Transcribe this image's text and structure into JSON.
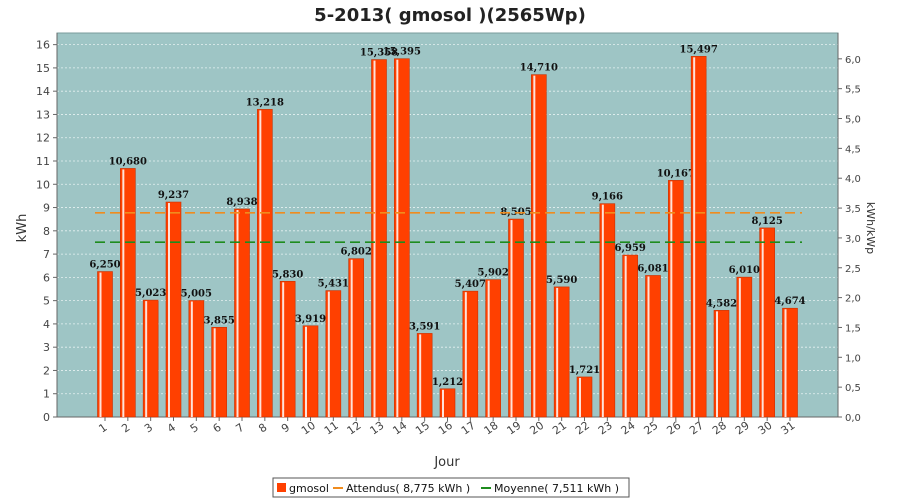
{
  "chart_data": {
    "type": "bar",
    "title": "5-2013( gmosol )(2565Wp)",
    "xlabel": "Jour",
    "ylabel": "kWh",
    "ylabel_right": "kWh/kWp",
    "ylim": [
      0,
      16.5
    ],
    "ylim_right": [
      0,
      6.4327
    ],
    "y_ticks": [
      "0",
      "1",
      "2",
      "3",
      "4",
      "5",
      "6",
      "7",
      "8",
      "9",
      "10",
      "11",
      "12",
      "13",
      "14",
      "15",
      "16"
    ],
    "y_ticks_right": [
      "0,0",
      "0,5",
      "1,0",
      "1,5",
      "2,0",
      "2,5",
      "3,0",
      "3,5",
      "4,0",
      "4,5",
      "5,0",
      "5,5",
      "6,0"
    ],
    "categories": [
      "1",
      "2",
      "3",
      "4",
      "5",
      "6",
      "7",
      "8",
      "9",
      "10",
      "11",
      "12",
      "13",
      "14",
      "15",
      "16",
      "17",
      "18",
      "19",
      "20",
      "21",
      "22",
      "23",
      "24",
      "25",
      "26",
      "27",
      "28",
      "29",
      "30",
      "31"
    ],
    "series": [
      {
        "name": "gmosol",
        "values": [
          6.25,
          10.68,
          5.023,
          9.237,
          5.005,
          3.855,
          8.938,
          13.218,
          5.83,
          3.919,
          5.431,
          6.802,
          15.358,
          15.395,
          3.591,
          1.212,
          5.407,
          5.902,
          8.505,
          14.71,
          5.59,
          1.721,
          9.166,
          6.959,
          6.081,
          10.167,
          15.497,
          4.582,
          6.01,
          8.125,
          4.674
        ],
        "labels": [
          "6,250",
          "10,680",
          "5,023",
          "9,237",
          "5,005",
          "3,855",
          "8,938",
          "13,218",
          "5,830",
          "3,919",
          "5,431",
          "6,802",
          "15,358",
          "15,395",
          "3,591",
          "1,212",
          "5,407",
          "5,902",
          "8,505",
          "14,710",
          "5,590",
          "1,721",
          "9,166",
          "6,959",
          "6,081",
          "10,167",
          "15,497",
          "4,582",
          "6,010",
          "8,125",
          "4,674"
        ]
      }
    ],
    "lines": [
      {
        "name": "Attendus( 8,775 kWh )",
        "value": 8.775,
        "style": "dashed"
      },
      {
        "name": "Moyenne( 7,511 kWh )",
        "value": 7.511,
        "style": "dashed"
      }
    ],
    "grid": true,
    "legend_position": "bottom"
  },
  "colors": {
    "bar": "#ff4000",
    "bar_highlight": "#ffffff",
    "attendus": "#f08c1e",
    "moyenne": "#1e8c1e",
    "plot_bg": "#9ec5c5",
    "grid": "#e6f2f2"
  }
}
